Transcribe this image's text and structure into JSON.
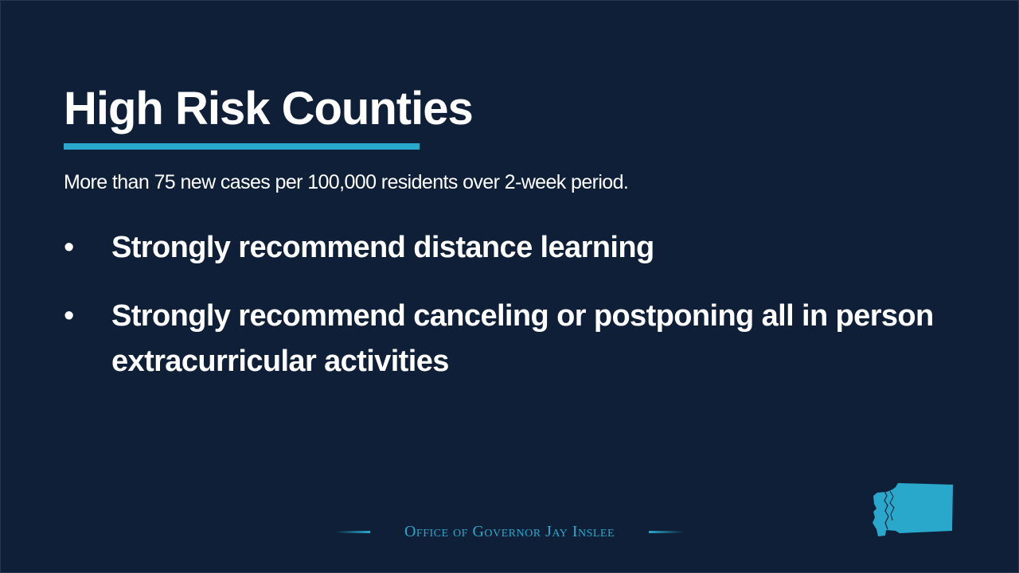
{
  "slide": {
    "title": "High Risk Counties",
    "subtitle": "More than 75 new cases per 100,000 residents over 2-week period.",
    "bullets": [
      {
        "marker": "•",
        "text": "Strongly recommend distance learning"
      },
      {
        "marker": "•",
        "text": "Strongly recommend canceling or postponing all in person extracurricular activities"
      }
    ]
  },
  "footer": {
    "label": "Office of Governor Jay Inslee",
    "icon": "washington-state-icon"
  },
  "colors": {
    "background": "#0e1f37",
    "accent": "#2aa8cc",
    "text": "#ffffff"
  }
}
